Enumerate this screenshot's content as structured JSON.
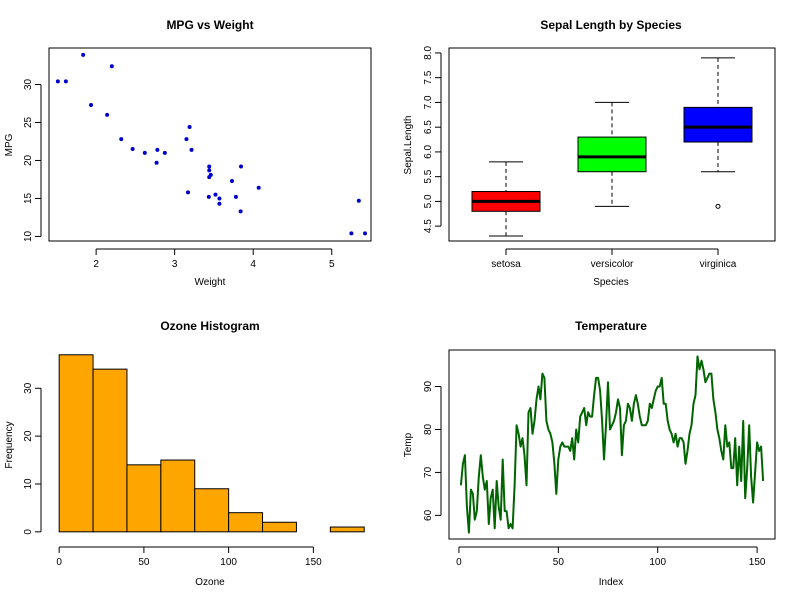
{
  "chart_data": [
    {
      "type": "scatter",
      "title": "MPG vs Weight",
      "xlabel": "Weight",
      "ylabel": "MPG",
      "xlim": [
        1.4,
        5.5
      ],
      "ylim": [
        9.4,
        34.8
      ],
      "xticks": [
        2,
        3,
        4,
        5
      ],
      "yticks": [
        10,
        15,
        20,
        25,
        30
      ],
      "color": "#0000CD",
      "x": [
        2.62,
        2.875,
        2.32,
        3.215,
        3.44,
        3.46,
        3.57,
        3.19,
        3.15,
        3.44,
        3.44,
        4.07,
        3.73,
        3.78,
        5.25,
        5.424,
        5.345,
        2.2,
        1.615,
        1.835,
        2.465,
        3.52,
        3.435,
        3.84,
        3.845,
        1.935,
        2.14,
        1.513,
        3.17,
        2.77,
        3.57,
        2.78
      ],
      "y": [
        21.0,
        21.0,
        22.8,
        21.4,
        18.7,
        18.1,
        14.3,
        24.4,
        22.8,
        19.2,
        17.8,
        16.4,
        17.3,
        15.2,
        10.4,
        10.4,
        14.7,
        32.4,
        30.4,
        33.9,
        21.5,
        15.5,
        15.2,
        13.3,
        19.2,
        27.3,
        26.0,
        30.4,
        15.8,
        19.7,
        15.0,
        21.4
      ]
    },
    {
      "type": "box",
      "title": "Sepal Length by Species",
      "xlabel": "Species",
      "ylabel": "Sepal.Length",
      "ylim": [
        4.2,
        8.1
      ],
      "yticks": [
        "4.5",
        "5.0",
        "5.5",
        "6.0",
        "6.5",
        "7.0",
        "7.5",
        "8.0"
      ],
      "categories": [
        "setosa",
        "versicolor",
        "virginica"
      ],
      "boxes": [
        {
          "name": "setosa",
          "min": 4.3,
          "q1": 4.8,
          "median": 5.0,
          "q3": 5.2,
          "max": 5.8,
          "outliers": [],
          "color": "#FF0000"
        },
        {
          "name": "versicolor",
          "min": 4.9,
          "q1": 5.6,
          "median": 5.9,
          "q3": 6.3,
          "max": 7.0,
          "outliers": [],
          "color": "#00FF00"
        },
        {
          "name": "virginica",
          "min": 5.6,
          "q1": 6.2,
          "median": 6.5,
          "q3": 6.9,
          "max": 7.9,
          "outliers": [
            4.9
          ],
          "color": "#0000FF"
        }
      ]
    },
    {
      "type": "bar",
      "title": "Ozone Histogram",
      "xlabel": "Ozone",
      "ylabel": "Frequency",
      "xlim": [
        -6,
        184
      ],
      "ylim": [
        -1.5,
        38
      ],
      "xticks": [
        0,
        50,
        100,
        150
      ],
      "yticks": [
        0,
        10,
        20,
        30
      ],
      "color": "#FFA500",
      "bin_edges": [
        0,
        20,
        40,
        60,
        80,
        100,
        120,
        140,
        160,
        180
      ],
      "counts": [
        37,
        34,
        14,
        15,
        9,
        4,
        2,
        0,
        1
      ]
    },
    {
      "type": "line",
      "title": "Temperature",
      "xlabel": "Index",
      "ylabel": "Temp",
      "xlim": [
        -5,
        159
      ],
      "ylim": [
        54.5,
        98.5
      ],
      "xticks": [
        0,
        50,
        100,
        150
      ],
      "yticks": [
        60,
        70,
        80,
        90
      ],
      "color": "#006400",
      "y": [
        67,
        72,
        74,
        62,
        56,
        66,
        65,
        59,
        61,
        69,
        74,
        69,
        66,
        68,
        58,
        64,
        66,
        57,
        68,
        62,
        59,
        73,
        61,
        61,
        57,
        58,
        57,
        67,
        81,
        79,
        76,
        78,
        74,
        67,
        84,
        85,
        79,
        82,
        87,
        90,
        87,
        93,
        92,
        82,
        80,
        79,
        77,
        72,
        65,
        73,
        76,
        77,
        76,
        76,
        76,
        75,
        78,
        73,
        80,
        77,
        83,
        84,
        85,
        81,
        84,
        83,
        83,
        88,
        92,
        92,
        89,
        82,
        73,
        81,
        91,
        80,
        81,
        82,
        84,
        87,
        85,
        74,
        81,
        82,
        86,
        85,
        82,
        86,
        88,
        86,
        83,
        81,
        81,
        81,
        82,
        86,
        85,
        87,
        89,
        90,
        90,
        92,
        86,
        86,
        82,
        80,
        79,
        77,
        79,
        76,
        78,
        78,
        77,
        72,
        75,
        79,
        81,
        86,
        88,
        97,
        94,
        96,
        94,
        91,
        92,
        93,
        93,
        87,
        84,
        80,
        78,
        75,
        73,
        81,
        76,
        77,
        71,
        71,
        78,
        67,
        76,
        68,
        82,
        64,
        71,
        81,
        69,
        63,
        70,
        77,
        75,
        76,
        68
      ]
    }
  ]
}
